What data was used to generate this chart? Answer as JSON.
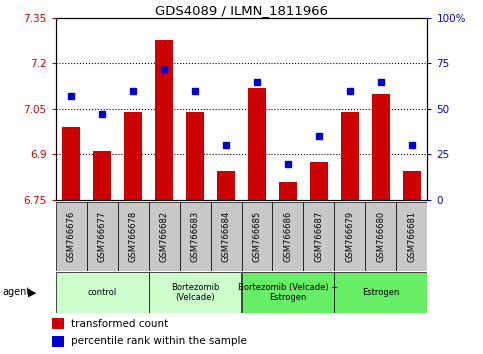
{
  "title": "GDS4089 / ILMN_1811966",
  "samples": [
    "GSM766676",
    "GSM766677",
    "GSM766678",
    "GSM766682",
    "GSM766683",
    "GSM766684",
    "GSM766685",
    "GSM766686",
    "GSM766687",
    "GSM766679",
    "GSM766680",
    "GSM766681"
  ],
  "red_values": [
    6.99,
    6.91,
    7.04,
    7.275,
    7.04,
    6.845,
    7.12,
    6.81,
    6.875,
    7.04,
    7.1,
    6.845
  ],
  "blue_values": [
    57,
    47,
    60,
    72,
    60,
    30,
    65,
    20,
    35,
    60,
    65,
    30
  ],
  "ylim_left": [
    6.75,
    7.35
  ],
  "ylim_right": [
    0,
    100
  ],
  "yticks_left": [
    6.75,
    6.9,
    7.05,
    7.2,
    7.35
  ],
  "ytick_labels_left": [
    "6.75",
    "6.9",
    "7.05",
    "7.2",
    "7.35"
  ],
  "yticks_right": [
    0,
    25,
    50,
    75,
    100
  ],
  "ytick_labels_right": [
    "0",
    "25",
    "50",
    "75",
    "100%"
  ],
  "hlines": [
    6.9,
    7.05,
    7.2
  ],
  "bar_color": "#cc0000",
  "marker_color": "#0000cc",
  "bar_width": 0.6,
  "background_sample": "#c8c8c8",
  "group_spans": [
    {
      "start": 0,
      "end": 2,
      "label": "control",
      "color": "#ccffcc"
    },
    {
      "start": 3,
      "end": 5,
      "label": "Bortezomib\n(Velcade)",
      "color": "#ccffcc"
    },
    {
      "start": 6,
      "end": 8,
      "label": "Bortezomib (Velcade) +\nEstrogen",
      "color": "#66ee66"
    },
    {
      "start": 9,
      "end": 11,
      "label": "Estrogen",
      "color": "#66ee66"
    }
  ],
  "legend1_label": "transformed count",
  "legend2_label": "percentile rank within the sample"
}
